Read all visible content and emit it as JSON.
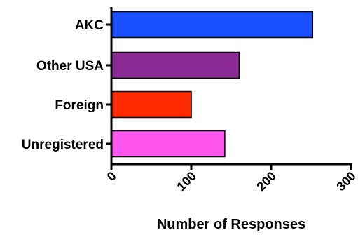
{
  "chart_data": {
    "type": "bar",
    "orientation": "horizontal",
    "categories": [
      "AKC",
      "Other USA",
      "Foreign",
      "Unregistered"
    ],
    "values": [
      252,
      160,
      100,
      142
    ],
    "colors": [
      "#1a50ff",
      "#8b2a94",
      "#ff2a00",
      "#ff55ee"
    ],
    "xlabel": "Number of Responses",
    "ylabel": "",
    "xlim": [
      0,
      300
    ],
    "xticks": [
      0,
      100,
      200,
      300
    ],
    "xtick_labels": [
      "0",
      "100",
      "200",
      "300"
    ],
    "grid": false,
    "legend": "none"
  }
}
